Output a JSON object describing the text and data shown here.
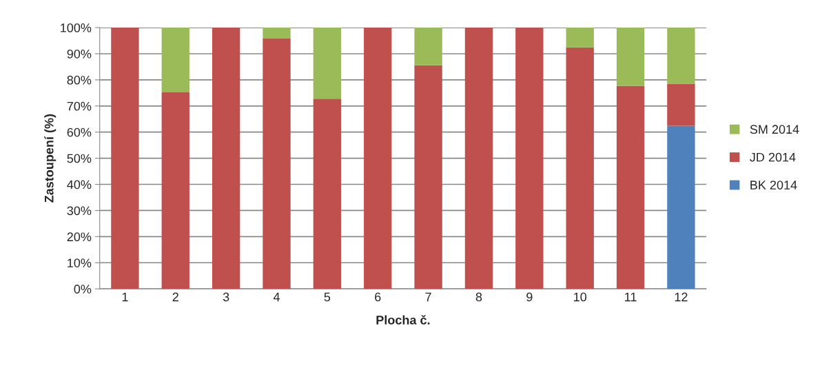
{
  "chart_data": {
    "type": "bar",
    "stacked": true,
    "xlabel": "Plocha č.",
    "ylabel": "Zastoupení (%)",
    "categories": [
      "1",
      "2",
      "3",
      "4",
      "5",
      "6",
      "7",
      "8",
      "9",
      "10",
      "11",
      "12"
    ],
    "series": [
      {
        "name": "BK 2014",
        "color": "#4f81bd",
        "values": [
          null,
          null,
          null,
          null,
          null,
          null,
          null,
          null,
          null,
          null,
          null,
          62.4
        ]
      },
      {
        "name": "JD 2014",
        "color": "#c0504d",
        "values": [
          100,
          75.2,
          100,
          95.8,
          72.8,
          100,
          85.6,
          100,
          100,
          92.4,
          77.7,
          16.1
        ]
      },
      {
        "name": "SM 2014",
        "color": "#9bbb59",
        "values": [
          null,
          24.8,
          null,
          4.2,
          27.2,
          null,
          14.4,
          null,
          null,
          7.6,
          22.3,
          21.5
        ]
      }
    ],
    "ylim": [
      0,
      100
    ],
    "yticks": [
      {
        "value": 0,
        "label": "0%"
      },
      {
        "value": 10,
        "label": "10%"
      },
      {
        "value": 20,
        "label": "20%"
      },
      {
        "value": 30,
        "label": "30%"
      },
      {
        "value": 40,
        "label": "40%"
      },
      {
        "value": 50,
        "label": "50%"
      },
      {
        "value": 60,
        "label": "60%"
      },
      {
        "value": 70,
        "label": "70%"
      },
      {
        "value": 80,
        "label": "80%"
      },
      {
        "value": 90,
        "label": "90%"
      },
      {
        "value": 100,
        "label": "100%"
      }
    ],
    "grid": "y",
    "legend": "right"
  }
}
